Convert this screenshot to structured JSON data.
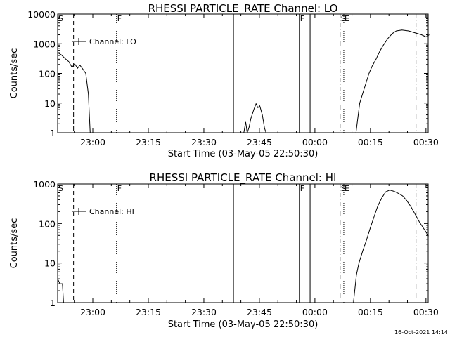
{
  "footer": {
    "timestamp": "16-Oct-2021 14:14"
  },
  "chart_data": [
    {
      "type": "line",
      "title": "RHESSI PARTICLE_RATE Channel: LO",
      "xlabel": "Start Time (03-May-05 22:50:30)",
      "ylabel": "Counts/sec",
      "yscale": "log",
      "grid": false,
      "legend_position": "top-left",
      "xlim_minutes_from_start": [
        0,
        100.1
      ],
      "ylim": [
        1,
        10000
      ],
      "x_ticks": [
        {
          "label": "23:00",
          "minute": 9.5
        },
        {
          "label": "23:15",
          "minute": 24.5
        },
        {
          "label": "23:30",
          "minute": 39.5
        },
        {
          "label": "23:45",
          "minute": 54.5
        },
        {
          "label": "00:00",
          "minute": 69.5
        },
        {
          "label": "00:15",
          "minute": 84.5
        },
        {
          "label": "00:30",
          "minute": 99.5
        }
      ],
      "y_ticks": [
        {
          "label": "1",
          "value": 1
        },
        {
          "label": "10",
          "value": 10
        },
        {
          "label": "100",
          "value": 100
        },
        {
          "label": "1000",
          "value": 1000
        },
        {
          "label": "10000",
          "value": 10000
        }
      ],
      "series": [
        {
          "name": "Channel: LO",
          "segments": [
            [
              [
                0.0,
                500
              ],
              [
                1.0,
                420
              ],
              [
                2.0,
                320
              ],
              [
                3.0,
                250
              ],
              [
                3.9,
                160
              ],
              [
                4.6,
                210
              ],
              [
                5.4,
                150
              ],
              [
                6.0,
                190
              ],
              [
                6.8,
                140
              ],
              [
                7.6,
                100
              ],
              [
                8.3,
                20
              ],
              [
                8.8,
                1
              ]
            ],
            [
              [
                50.3,
                1
              ],
              [
                50.8,
                2.3
              ],
              [
                51.2,
                1
              ],
              [
                51.7,
                1.5
              ],
              [
                52.2,
                3
              ],
              [
                53.0,
                6
              ],
              [
                53.6,
                9.5
              ],
              [
                54.1,
                7
              ],
              [
                54.6,
                8
              ],
              [
                55.3,
                4
              ],
              [
                55.9,
                1.4
              ],
              [
                56.3,
                1
              ]
            ],
            [
              [
                80.6,
                1
              ],
              [
                81.6,
                10
              ],
              [
                82.8,
                30
              ],
              [
                84.1,
                100
              ],
              [
                85.0,
                180
              ],
              [
                86.0,
                300
              ],
              [
                87.0,
                550
              ],
              [
                88.0,
                900
              ],
              [
                89.2,
                1500
              ],
              [
                90.4,
                2200
              ],
              [
                91.5,
                2700
              ],
              [
                93.0,
                2900
              ],
              [
                94.8,
                2700
              ],
              [
                96.7,
                2300
              ],
              [
                98.3,
                2000
              ],
              [
                99.5,
                1700
              ],
              [
                100.4,
                2000
              ]
            ]
          ]
        }
      ],
      "markers": [
        {
          "label": "S",
          "minute": 0.0,
          "style": "solid"
        },
        {
          "label": "",
          "minute": 4.3,
          "style": "dashed"
        },
        {
          "label": "F",
          "minute": 15.9,
          "style": "dotted"
        },
        {
          "label": "",
          "minute": 47.5,
          "style": "solid"
        },
        {
          "label": "F",
          "minute": 65.3,
          "style": "solid"
        },
        {
          "label": "",
          "minute": 68.2,
          "style": "solid"
        },
        {
          "label": "S",
          "minute": 76.3,
          "style": "dashdot"
        },
        {
          "label": "E",
          "minute": 77.3,
          "style": "dotted"
        },
        {
          "label": "",
          "minute": 96.8,
          "style": "dashdot"
        }
      ]
    },
    {
      "type": "line",
      "title": "RHESSI PARTICLE_RATE Channel: HI",
      "xlabel": "Start Time (03-May-05 22:50:30)",
      "ylabel": "Counts/sec",
      "yscale": "log",
      "grid": false,
      "legend_position": "top-left",
      "xlim_minutes_from_start": [
        0,
        100.1
      ],
      "ylim": [
        1,
        1000
      ],
      "x_ticks": [
        {
          "label": "23:00",
          "minute": 9.5
        },
        {
          "label": "23:15",
          "minute": 24.5
        },
        {
          "label": "23:30",
          "minute": 39.5
        },
        {
          "label": "23:45",
          "minute": 54.5
        },
        {
          "label": "00:00",
          "minute": 69.5
        },
        {
          "label": "00:15",
          "minute": 84.5
        },
        {
          "label": "00:30",
          "minute": 99.5
        }
      ],
      "y_ticks": [
        {
          "label": "1",
          "value": 1
        },
        {
          "label": "10",
          "value": 10
        },
        {
          "label": "100",
          "value": 100
        },
        {
          "label": "1000",
          "value": 1000
        }
      ],
      "series": [
        {
          "name": "Channel: HI",
          "segments": [
            [
              [
                0.0,
                4
              ],
              [
                0.6,
                3
              ],
              [
                1.3,
                3
              ],
              [
                1.6,
                1
              ]
            ],
            [
              [
                79.9,
                1
              ],
              [
                80.7,
                5
              ],
              [
                81.4,
                10
              ],
              [
                82.4,
                20
              ],
              [
                83.5,
                40
              ],
              [
                84.5,
                80
              ],
              [
                85.5,
                150
              ],
              [
                86.5,
                280
              ],
              [
                87.6,
                450
              ],
              [
                88.6,
                630
              ],
              [
                89.7,
                700
              ],
              [
                90.9,
                650
              ],
              [
                92.0,
                580
              ],
              [
                93.2,
                500
              ],
              [
                94.3,
                380
              ],
              [
                95.5,
                260
              ],
              [
                96.6,
                170
              ],
              [
                97.7,
                110
              ],
              [
                99.1,
                70
              ],
              [
                100.2,
                48
              ]
            ]
          ]
        }
      ],
      "markers": [
        {
          "label": "S",
          "minute": 0.0,
          "style": "solid"
        },
        {
          "label": "",
          "minute": 4.3,
          "style": "dashed"
        },
        {
          "label": "F",
          "minute": 15.9,
          "style": "dotted"
        },
        {
          "label": "",
          "minute": 47.5,
          "style": "solid"
        },
        {
          "label": "F",
          "minute": 65.3,
          "style": "solid"
        },
        {
          "label": "",
          "minute": 68.2,
          "style": "solid"
        },
        {
          "label": "S",
          "minute": 76.3,
          "style": "dashdot"
        },
        {
          "label": "E",
          "minute": 77.3,
          "style": "dotted"
        },
        {
          "label": "",
          "minute": 96.8,
          "style": "dashdot"
        }
      ]
    }
  ]
}
